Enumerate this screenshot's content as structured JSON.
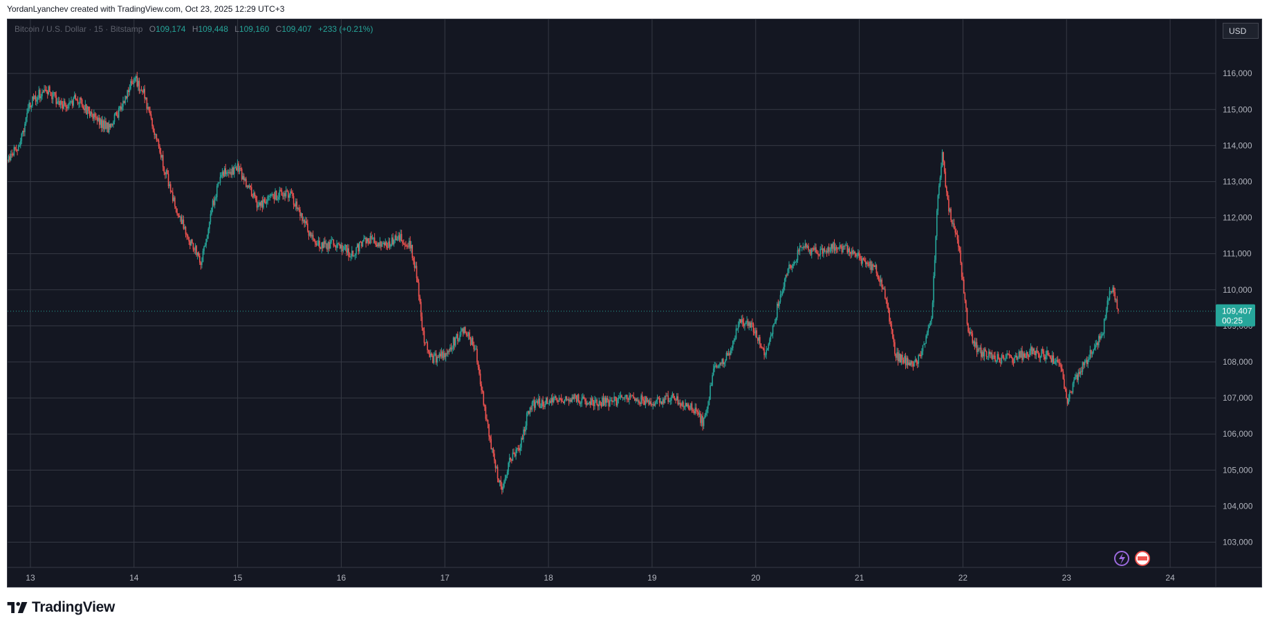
{
  "header": {
    "credit": "YordanLyanchev created with TradingView.com, Oct 23, 2025 12:29 UTC+3"
  },
  "legend": {
    "symbol": "Bitcoin / U.S. Dollar · 15 · Bitstamp",
    "open_label": "O",
    "open": "109,174",
    "high_label": "H",
    "high": "109,448",
    "low_label": "L",
    "low": "109,160",
    "close_label": "C",
    "close": "109,407",
    "change": "+233 (+0.21%)"
  },
  "currency": "USD",
  "price_tag": {
    "price": "109,407",
    "countdown": "00:25"
  },
  "footer": {
    "brand": "TradingView"
  },
  "colors": {
    "background": "#141722",
    "grid": "#363a45",
    "up": "#26a69a",
    "down": "#ef5350",
    "text": "#b2b5be"
  },
  "chart_data": {
    "type": "candlestick",
    "x_ticks": [
      "13",
      "14",
      "15",
      "16",
      "17",
      "18",
      "19",
      "20",
      "21",
      "22",
      "23",
      "24"
    ],
    "y_ticks": [
      "103,000",
      "104,000",
      "105,000",
      "106,000",
      "107,000",
      "108,000",
      "109,000",
      "110,000",
      "111,000",
      "112,000",
      "113,000",
      "114,000",
      "115,000",
      "116,000"
    ],
    "ylim": [
      102300,
      117500
    ],
    "xlim": [
      12.78,
      24.44
    ],
    "last_price": 109407,
    "candles_per_day": 96,
    "path": [
      [
        12.78,
        113600
      ],
      [
        12.9,
        114100
      ],
      [
        13.0,
        115200
      ],
      [
        13.15,
        115600
      ],
      [
        13.3,
        115100
      ],
      [
        13.45,
        115300
      ],
      [
        13.6,
        114800
      ],
      [
        13.75,
        114500
      ],
      [
        13.85,
        114900
      ],
      [
        14.0,
        115900
      ],
      [
        14.1,
        115400
      ],
      [
        14.2,
        114300
      ],
      [
        14.3,
        113300
      ],
      [
        14.42,
        112100
      ],
      [
        14.55,
        111300
      ],
      [
        14.65,
        110800
      ],
      [
        14.75,
        112300
      ],
      [
        14.85,
        113200
      ],
      [
        15.0,
        113400
      ],
      [
        15.1,
        112900
      ],
      [
        15.2,
        112300
      ],
      [
        15.35,
        112600
      ],
      [
        15.5,
        112700
      ],
      [
        15.6,
        112100
      ],
      [
        15.7,
        111500
      ],
      [
        15.8,
        111200
      ],
      [
        15.95,
        111300
      ],
      [
        16.1,
        111000
      ],
      [
        16.25,
        111400
      ],
      [
        16.4,
        111200
      ],
      [
        16.55,
        111500
      ],
      [
        16.67,
        111200
      ],
      [
        16.73,
        110400
      ],
      [
        16.78,
        108900
      ],
      [
        16.85,
        108100
      ],
      [
        16.95,
        108100
      ],
      [
        17.1,
        108600
      ],
      [
        17.2,
        108900
      ],
      [
        17.3,
        108300
      ],
      [
        17.38,
        106700
      ],
      [
        17.48,
        105200
      ],
      [
        17.55,
        104400
      ],
      [
        17.63,
        105300
      ],
      [
        17.72,
        105600
      ],
      [
        17.82,
        106800
      ],
      [
        18.0,
        106900
      ],
      [
        18.2,
        107000
      ],
      [
        18.4,
        106900
      ],
      [
        18.6,
        106900
      ],
      [
        18.8,
        107000
      ],
      [
        19.0,
        106900
      ],
      [
        19.2,
        107000
      ],
      [
        19.4,
        106700
      ],
      [
        19.5,
        106300
      ],
      [
        19.6,
        107800
      ],
      [
        19.75,
        108200
      ],
      [
        19.85,
        109200
      ],
      [
        19.98,
        108900
      ],
      [
        20.1,
        108200
      ],
      [
        20.2,
        109400
      ],
      [
        20.3,
        110500
      ],
      [
        20.45,
        111200
      ],
      [
        20.6,
        111000
      ],
      [
        20.75,
        111200
      ],
      [
        20.9,
        111100
      ],
      [
        21.05,
        110800
      ],
      [
        21.15,
        110600
      ],
      [
        21.25,
        109800
      ],
      [
        21.35,
        108200
      ],
      [
        21.5,
        107900
      ],
      [
        21.6,
        108200
      ],
      [
        21.7,
        109200
      ],
      [
        21.75,
        112200
      ],
      [
        21.8,
        113800
      ],
      [
        21.85,
        112400
      ],
      [
        21.95,
        111400
      ],
      [
        22.05,
        108900
      ],
      [
        22.15,
        108300
      ],
      [
        22.3,
        108100
      ],
      [
        22.5,
        108100
      ],
      [
        22.65,
        108300
      ],
      [
        22.8,
        108200
      ],
      [
        22.95,
        107900
      ],
      [
        23.0,
        106900
      ],
      [
        23.1,
        107600
      ],
      [
        23.25,
        108300
      ],
      [
        23.35,
        108800
      ],
      [
        23.4,
        109800
      ],
      [
        23.45,
        110000
      ],
      [
        23.5,
        109400
      ]
    ]
  }
}
